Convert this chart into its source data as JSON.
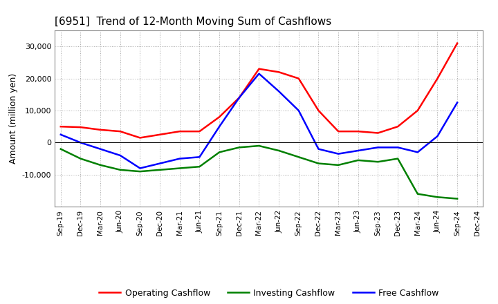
{
  "title": "[6951]  Trend of 12-Month Moving Sum of Cashflows",
  "ylabel": "Amount (million yen)",
  "x_labels": [
    "Sep-19",
    "Dec-19",
    "Mar-20",
    "Jun-20",
    "Sep-20",
    "Dec-20",
    "Mar-21",
    "Jun-21",
    "Sep-21",
    "Dec-21",
    "Mar-22",
    "Jun-22",
    "Sep-22",
    "Dec-22",
    "Mar-23",
    "Jun-23",
    "Sep-23",
    "Dec-23",
    "Mar-24",
    "Jun-24",
    "Sep-24",
    "Dec-24"
  ],
  "operating": [
    5000,
    4800,
    4000,
    3500,
    1500,
    2500,
    3500,
    3500,
    8000,
    14000,
    23000,
    22000,
    20000,
    10000,
    3500,
    3500,
    3000,
    5000,
    10000,
    20000,
    31000,
    null
  ],
  "investing": [
    -2000,
    -5000,
    -7000,
    -8500,
    -9000,
    -8500,
    -8000,
    -7500,
    -3000,
    -1500,
    -1000,
    -2500,
    -4500,
    -6500,
    -7000,
    -5500,
    -6000,
    -5000,
    -16000,
    -17000,
    -17500,
    null
  ],
  "free": [
    2500,
    0,
    -2000,
    -4000,
    -8000,
    -6500,
    -5000,
    -4500,
    5000,
    14000,
    21500,
    16000,
    10000,
    -2000,
    -3500,
    -2500,
    -1500,
    -1500,
    -3000,
    2000,
    12500,
    null
  ],
  "operating_color": "#ff0000",
  "investing_color": "#008000",
  "free_color": "#0000ff",
  "ylim": [
    -20000,
    35000
  ],
  "yticks": [
    -10000,
    0,
    10000,
    20000,
    30000
  ],
  "background_color": "#ffffff",
  "plot_bg_color": "#ffffff",
  "grid_color": "#aaaaaa"
}
